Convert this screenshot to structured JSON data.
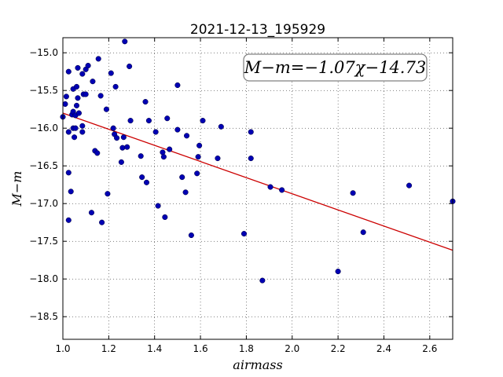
{
  "chart_data": {
    "type": "scatter",
    "title": "2021-12-13_195929",
    "xlabel": "airmass",
    "ylabel": "M−m",
    "xlim": [
      1.0,
      2.7
    ],
    "ylim": [
      -18.8,
      -14.8
    ],
    "grid": true,
    "xticks": [
      1.0,
      1.2,
      1.4,
      1.6,
      1.8,
      2.0,
      2.2,
      2.4,
      2.6
    ],
    "xtick_labels": [
      "1.0",
      "1.2",
      "1.4",
      "1.6",
      "1.8",
      "2.0",
      "2.2",
      "2.4",
      "2.6"
    ],
    "yticks": [
      -15.0,
      -15.5,
      -16.0,
      -16.5,
      -17.0,
      -17.5,
      -18.0,
      -18.5
    ],
    "ytick_labels": [
      "−15.0",
      "−15.5",
      "−16.0",
      "−16.5",
      "−17.0",
      "−17.5",
      "−18.0",
      "−18.5"
    ],
    "annotation": "M−m=−1.07χ−14.73",
    "fit": {
      "slope": -1.07,
      "intercept": -14.73,
      "color": "#cc0000"
    },
    "marker_color": "#0000b3",
    "points": [
      {
        "x": 1.0,
        "y": -15.85
      },
      {
        "x": 1.01,
        "y": -15.68
      },
      {
        "x": 1.015,
        "y": -15.58
      },
      {
        "x": 1.025,
        "y": -15.25
      },
      {
        "x": 1.025,
        "y": -16.05
      },
      {
        "x": 1.025,
        "y": -16.59
      },
      {
        "x": 1.025,
        "y": -17.22
      },
      {
        "x": 1.035,
        "y": -16.84
      },
      {
        "x": 1.04,
        "y": -15.82
      },
      {
        "x": 1.045,
        "y": -15.48
      },
      {
        "x": 1.045,
        "y": -15.78
      },
      {
        "x": 1.045,
        "y": -16.0
      },
      {
        "x": 1.05,
        "y": -16.12
      },
      {
        "x": 1.055,
        "y": -15.83
      },
      {
        "x": 1.055,
        "y": -16.0
      },
      {
        "x": 1.06,
        "y": -15.45
      },
      {
        "x": 1.06,
        "y": -15.7
      },
      {
        "x": 1.065,
        "y": -15.2
      },
      {
        "x": 1.065,
        "y": -15.6
      },
      {
        "x": 1.07,
        "y": -15.8
      },
      {
        "x": 1.085,
        "y": -15.28
      },
      {
        "x": 1.085,
        "y": -15.97
      },
      {
        "x": 1.085,
        "y": -16.05
      },
      {
        "x": 1.09,
        "y": -15.55
      },
      {
        "x": 1.1,
        "y": -15.55
      },
      {
        "x": 1.1,
        "y": -15.22
      },
      {
        "x": 1.11,
        "y": -15.17
      },
      {
        "x": 1.125,
        "y": -17.12
      },
      {
        "x": 1.13,
        "y": -15.38
      },
      {
        "x": 1.14,
        "y": -16.3
      },
      {
        "x": 1.15,
        "y": -16.33
      },
      {
        "x": 1.155,
        "y": -15.08
      },
      {
        "x": 1.165,
        "y": -15.57
      },
      {
        "x": 1.17,
        "y": -17.25
      },
      {
        "x": 1.19,
        "y": -15.75
      },
      {
        "x": 1.195,
        "y": -16.87
      },
      {
        "x": 1.21,
        "y": -15.27
      },
      {
        "x": 1.22,
        "y": -16.0
      },
      {
        "x": 1.225,
        "y": -16.08
      },
      {
        "x": 1.23,
        "y": -15.45
      },
      {
        "x": 1.235,
        "y": -16.13
      },
      {
        "x": 1.255,
        "y": -16.45
      },
      {
        "x": 1.26,
        "y": -16.26
      },
      {
        "x": 1.265,
        "y": -16.12
      },
      {
        "x": 1.27,
        "y": -14.85
      },
      {
        "x": 1.28,
        "y": -16.25
      },
      {
        "x": 1.29,
        "y": -15.18
      },
      {
        "x": 1.295,
        "y": -15.9
      },
      {
        "x": 1.34,
        "y": -16.37
      },
      {
        "x": 1.345,
        "y": -16.65
      },
      {
        "x": 1.36,
        "y": -15.65
      },
      {
        "x": 1.365,
        "y": -16.72
      },
      {
        "x": 1.375,
        "y": -15.9
      },
      {
        "x": 1.405,
        "y": -16.05
      },
      {
        "x": 1.415,
        "y": -17.03
      },
      {
        "x": 1.435,
        "y": -16.32
      },
      {
        "x": 1.44,
        "y": -16.38
      },
      {
        "x": 1.445,
        "y": -17.18
      },
      {
        "x": 1.455,
        "y": -15.87
      },
      {
        "x": 1.465,
        "y": -16.28
      },
      {
        "x": 1.5,
        "y": -15.43
      },
      {
        "x": 1.5,
        "y": -16.02
      },
      {
        "x": 1.52,
        "y": -16.65
      },
      {
        "x": 1.535,
        "y": -16.85
      },
      {
        "x": 1.54,
        "y": -16.1
      },
      {
        "x": 1.56,
        "y": -17.42
      },
      {
        "x": 1.585,
        "y": -16.6
      },
      {
        "x": 1.59,
        "y": -16.38
      },
      {
        "x": 1.595,
        "y": -16.23
      },
      {
        "x": 1.61,
        "y": -15.9
      },
      {
        "x": 1.675,
        "y": -16.4
      },
      {
        "x": 1.69,
        "y": -15.98
      },
      {
        "x": 1.79,
        "y": -17.4
      },
      {
        "x": 1.82,
        "y": -16.05
      },
      {
        "x": 1.82,
        "y": -16.4
      },
      {
        "x": 1.87,
        "y": -18.02
      },
      {
        "x": 1.905,
        "y": -16.78
      },
      {
        "x": 1.955,
        "y": -16.82
      },
      {
        "x": 2.2,
        "y": -17.9
      },
      {
        "x": 2.265,
        "y": -16.86
      },
      {
        "x": 2.31,
        "y": -17.38
      },
      {
        "x": 2.51,
        "y": -16.76
      },
      {
        "x": 2.7,
        "y": -16.97
      }
    ]
  }
}
